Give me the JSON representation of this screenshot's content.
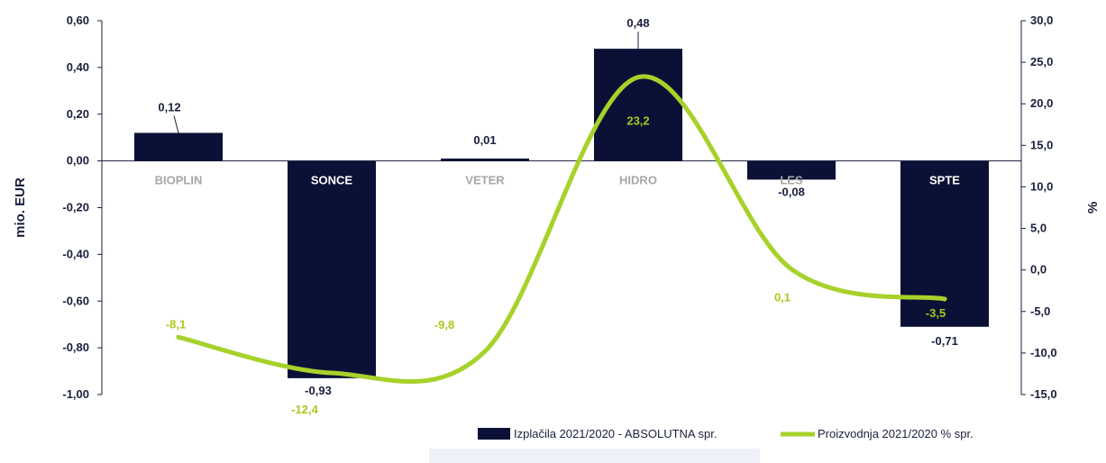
{
  "chart_data": {
    "type": "bar",
    "categories": [
      "BIOPLIN",
      "SONCE",
      "VETER",
      "HIDRO",
      "LES",
      "SPTE"
    ],
    "series": [
      {
        "name": "Izplačila 2021/2020 - ABSOLUTNA spr.",
        "type": "bar",
        "axis": "left",
        "values": [
          0.12,
          -0.93,
          0.01,
          0.48,
          -0.08,
          -0.71
        ],
        "labels": [
          "0,12",
          "-0,93",
          "0,01",
          "0,48",
          "-0,08",
          "-0,71"
        ],
        "color": "#0b1136"
      },
      {
        "name": "Proizvodnja 2021/2020 % spr.",
        "type": "line",
        "axis": "right",
        "values": [
          -8.1,
          -12.4,
          -9.8,
          23.2,
          0.1,
          -3.5
        ],
        "labels": [
          "-8,1",
          "-12,4",
          "-9,8",
          "23,2",
          "0,1",
          "-3,5"
        ],
        "color": "#a6d22a"
      }
    ],
    "ylabel": "mio. EUR",
    "y2label": "%",
    "ylim": [
      -1.0,
      0.6
    ],
    "y2lim": [
      -15.0,
      30.0
    ],
    "yticks": [
      "0,60",
      "0,40",
      "0,20",
      "0,00",
      "-0,20",
      "-0,40",
      "-0,60",
      "-0,80",
      "-1,00"
    ],
    "y2ticks": [
      "30,0",
      "25,0",
      "20,0",
      "15,0",
      "10,0",
      "5,0",
      "0,0",
      "-5,0",
      "-10,0",
      "-15,0"
    ],
    "grid": false,
    "legend_position": "bottom-right"
  },
  "colors": {
    "axis": "#1a1f3c",
    "category_label_light": "#a6a6a6",
    "category_label_dark": "#ffffff"
  }
}
